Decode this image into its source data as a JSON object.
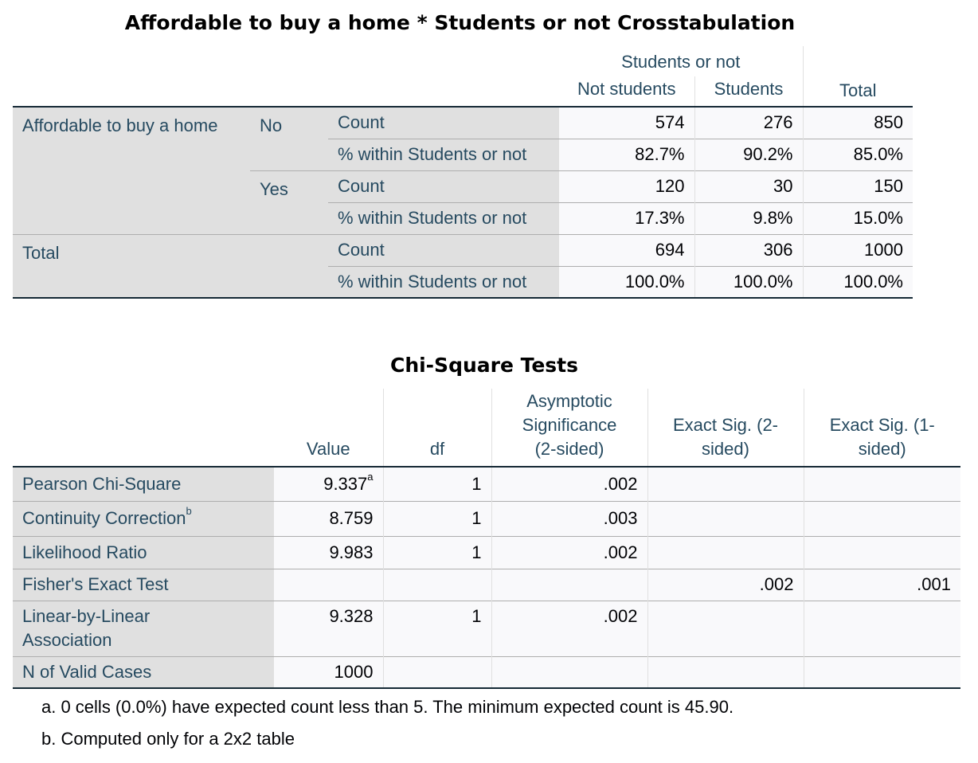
{
  "crosstab": {
    "title": "Affordable to buy a home * Students or not Crosstabulation",
    "col_group": "Students or not",
    "columns": [
      "Not students",
      "Students",
      "Total"
    ],
    "row_var": "Affordable to buy a home",
    "rows": [
      {
        "group": "No",
        "stat": "Count",
        "values": [
          "574",
          "276",
          "850"
        ]
      },
      {
        "stat": "% within Students or not",
        "values": [
          "82.7%",
          "90.2%",
          "85.0%"
        ]
      },
      {
        "group": "Yes",
        "stat": "Count",
        "values": [
          "120",
          "30",
          "150"
        ]
      },
      {
        "stat": "% within Students or not",
        "values": [
          "17.3%",
          "9.8%",
          "15.0%"
        ]
      }
    ],
    "total_label": "Total",
    "total_rows": [
      {
        "stat": "Count",
        "values": [
          "694",
          "306",
          "1000"
        ]
      },
      {
        "stat": "% within Students or not",
        "values": [
          "100.0%",
          "100.0%",
          "100.0%"
        ]
      }
    ]
  },
  "chisq": {
    "title": "Chi-Square Tests",
    "columns": [
      "Value",
      "df",
      "Asymptotic Significance (2-sided)",
      "Exact Sig. (2-sided)",
      "Exact Sig. (1-sided)"
    ],
    "rows": [
      {
        "label": "Pearson Chi-Square",
        "label_sup": "",
        "value": "9.337",
        "value_sup": "a",
        "df": "1",
        "asym": ".002",
        "exact2": "",
        "exact1": ""
      },
      {
        "label": "Continuity Correction",
        "label_sup": "b",
        "value": "8.759",
        "value_sup": "",
        "df": "1",
        "asym": ".003",
        "exact2": "",
        "exact1": ""
      },
      {
        "label": "Likelihood Ratio",
        "label_sup": "",
        "value": "9.983",
        "value_sup": "",
        "df": "1",
        "asym": ".002",
        "exact2": "",
        "exact1": ""
      },
      {
        "label": "Fisher's Exact Test",
        "label_sup": "",
        "value": "",
        "value_sup": "",
        "df": "",
        "asym": "",
        "exact2": ".002",
        "exact1": ".001"
      },
      {
        "label": "Linear-by-Linear Association",
        "label_sup": "",
        "value": "9.328",
        "value_sup": "",
        "df": "1",
        "asym": ".002",
        "exact2": "",
        "exact1": ""
      },
      {
        "label": "N of Valid Cases",
        "label_sup": "",
        "value": "1000",
        "value_sup": "",
        "df": "",
        "asym": "",
        "exact2": "",
        "exact1": ""
      }
    ],
    "footnotes": [
      "a. 0 cells (0.0%) have expected count less than 5. The minimum expected count is 45.90.",
      "b. Computed only for a 2x2 table"
    ]
  },
  "colors": {
    "header_text": "#264a60",
    "label_bg": "#e0e0e0",
    "data_bg": "#f9f9fb",
    "rule": "#152935"
  }
}
